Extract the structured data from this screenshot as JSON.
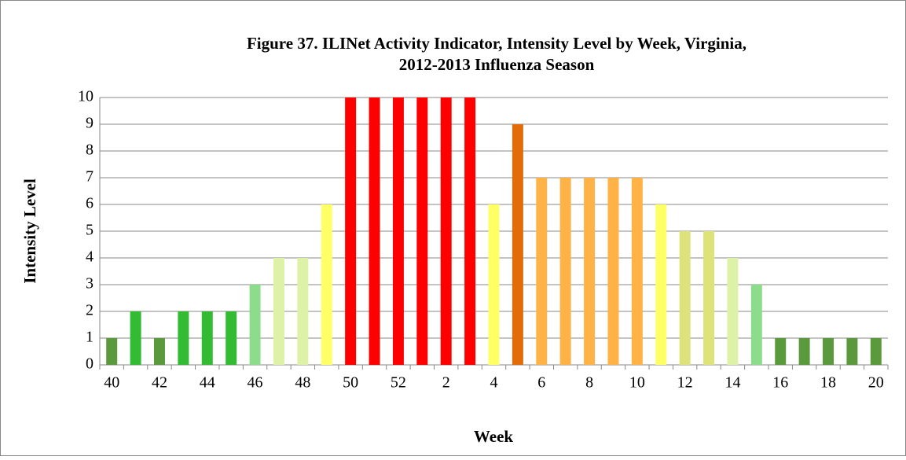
{
  "chart_data": {
    "type": "bar",
    "title": [
      "Figure 37.  ILINet Activity Indicator, Intensity Level by Week, Virginia,",
      "2012-2013 Influenza Season"
    ],
    "x_label": "Week",
    "y_label": "Intensity Level",
    "categories": [
      "40",
      null,
      "42",
      null,
      "44",
      null,
      "46",
      null,
      "48",
      null,
      "50",
      null,
      "52",
      null,
      "2",
      null,
      "4",
      null,
      "6",
      null,
      "8",
      null,
      "10",
      null,
      "12",
      null,
      "14",
      null,
      "16",
      null,
      "18",
      null,
      "20"
    ],
    "values": [
      1,
      2,
      1,
      2,
      2,
      2,
      3,
      4,
      4,
      6,
      10,
      10,
      10,
      10,
      10,
      10,
      6,
      9,
      7,
      7,
      7,
      7,
      7,
      6,
      5,
      5,
      4,
      3,
      1,
      1,
      1,
      1,
      1
    ],
    "colors": [
      "#5B9A3C",
      "#33BB33",
      "#5B9A3C",
      "#33BB33",
      "#33BB33",
      "#33BB33",
      "#8CDC8C",
      "#DDF2A6",
      "#DDF2A6",
      "#FFFF66",
      "#FF0000",
      "#FF0000",
      "#FF0000",
      "#FF0000",
      "#FF0000",
      "#FF0000",
      "#FFFF66",
      "#E36C0A",
      "#FFB245",
      "#FFB245",
      "#FFB245",
      "#FFB245",
      "#FFB245",
      "#FFFF66",
      "#DDE37A",
      "#DDE37A",
      "#DDF2A6",
      "#8CDC8C",
      "#5B9A3C",
      "#5B9A3C",
      "#5B9A3C",
      "#5B9A3C",
      "#5B9A3C"
    ],
    "ylim": [
      0,
      10
    ],
    "yticks": [
      0,
      1,
      2,
      3,
      4,
      5,
      6,
      7,
      8,
      9,
      10
    ],
    "grid": true
  }
}
